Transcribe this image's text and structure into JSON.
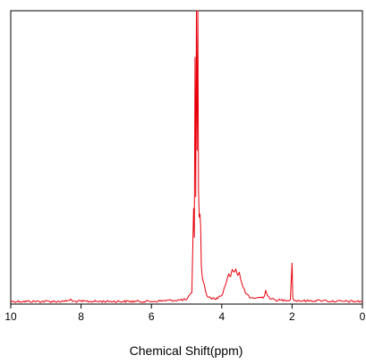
{
  "chart_data": {
    "type": "line",
    "title": "",
    "xlabel": "Chemical Shift(ppm)",
    "ylabel": "",
    "x_reversed": true,
    "xlim": [
      10,
      0
    ],
    "ylim": [
      0,
      1
    ],
    "xticks": [
      10,
      8,
      6,
      4,
      2,
      0
    ],
    "xtick_labels": [
      "10",
      "8",
      "6",
      "4",
      "2",
      "0"
    ],
    "grid": false,
    "legend": "none",
    "line_color": "#e8000b",
    "series": [
      {
        "x": [
          10.0,
          8.5,
          8.35,
          8.3,
          8.25,
          6.0,
          5.0,
          4.85,
          4.8,
          4.78,
          4.76,
          4.74,
          4.72,
          4.7,
          4.68,
          4.66,
          4.64,
          4.62,
          4.6,
          4.58,
          4.55,
          4.5,
          4.45,
          4.4,
          4.2,
          4.0,
          3.9,
          3.8,
          3.75,
          3.7,
          3.65,
          3.6,
          3.55,
          3.5,
          3.45,
          3.4,
          3.3,
          3.2,
          3.0,
          2.8,
          2.75,
          2.7,
          2.6,
          2.4,
          2.2,
          2.05,
          2.0,
          1.98,
          1.95,
          1.9,
          1.8,
          1.5,
          1.2,
          1.1,
          1.0,
          0.5,
          0.0
        ],
        "y": [
          0.0,
          0.0,
          0.003,
          0.008,
          0.0,
          0.0,
          0.006,
          0.03,
          0.32,
          0.22,
          0.84,
          0.36,
          1.0,
          0.52,
          1.0,
          0.38,
          0.29,
          0.3,
          0.26,
          0.12,
          0.08,
          0.06,
          0.03,
          0.015,
          0.008,
          0.02,
          0.055,
          0.095,
          0.085,
          0.11,
          0.1,
          0.112,
          0.09,
          0.1,
          0.07,
          0.05,
          0.025,
          0.012,
          0.012,
          0.015,
          0.038,
          0.02,
          0.008,
          0.004,
          0.004,
          0.006,
          0.132,
          0.01,
          0.004,
          0.003,
          0.002,
          0.002,
          0.003,
          0.004,
          0.001,
          0.0,
          0.0
        ]
      }
    ]
  }
}
